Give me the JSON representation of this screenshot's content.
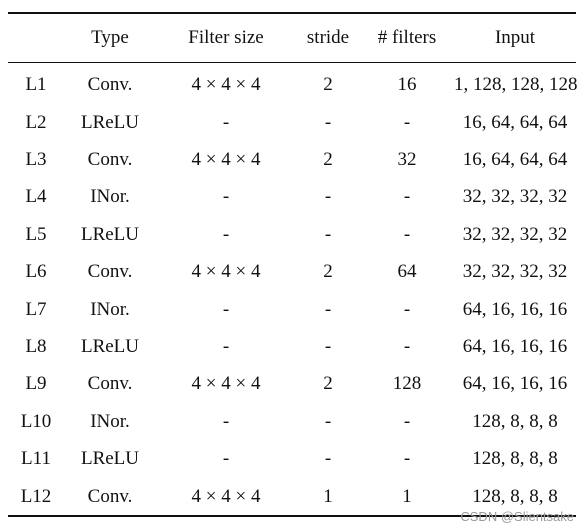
{
  "table": {
    "headers": [
      "",
      "Type",
      "Filter size",
      "stride",
      "# filters",
      "Input"
    ],
    "rows": [
      [
        "L1",
        "Conv.",
        "4 × 4 × 4",
        "2",
        "16",
        "1, 128, 128, 128"
      ],
      [
        "L2",
        "LReLU",
        "-",
        "-",
        "-",
        "16, 64, 64, 64"
      ],
      [
        "L3",
        "Conv.",
        "4 × 4 × 4",
        "2",
        "32",
        "16, 64, 64, 64"
      ],
      [
        "L4",
        "INor.",
        "-",
        "-",
        "-",
        "32, 32, 32, 32"
      ],
      [
        "L5",
        "LReLU",
        "-",
        "-",
        "-",
        "32, 32, 32, 32"
      ],
      [
        "L6",
        "Conv.",
        "4 × 4 × 4",
        "2",
        "64",
        "32, 32, 32, 32"
      ],
      [
        "L7",
        "INor.",
        "-",
        "-",
        "-",
        "64, 16, 16, 16"
      ],
      [
        "L8",
        "LReLU",
        "-",
        "-",
        "-",
        "64, 16, 16, 16"
      ],
      [
        "L9",
        "Conv.",
        "4 × 4 × 4",
        "2",
        "128",
        "64, 16, 16, 16"
      ],
      [
        "L10",
        "INor.",
        "-",
        "-",
        "-",
        "128, 8, 8, 8"
      ],
      [
        "L11",
        "LReLU",
        "-",
        "-",
        "-",
        "128, 8, 8, 8"
      ],
      [
        "L12",
        "Conv.",
        "4 × 4 × 4",
        "1",
        "1",
        "128, 8, 8, 8"
      ]
    ]
  },
  "watermark": "CSDN @Slientsake"
}
